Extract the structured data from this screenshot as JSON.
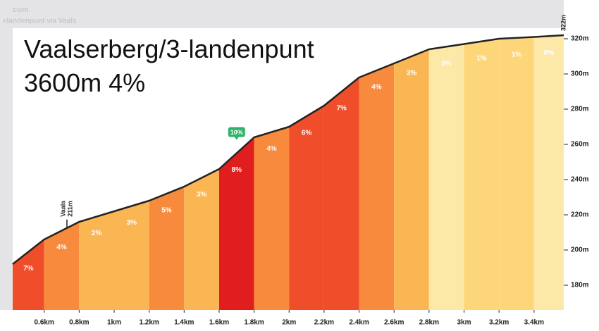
{
  "chart_data": {
    "type": "profile",
    "title": "Vaalserberg/3-landenpunt",
    "subtitle": "3600m 4%",
    "watermark": [
      "com",
      "elandenpunt via Vaals"
    ],
    "x": [
      0.42,
      0.6,
      0.8,
      1.0,
      1.2,
      1.4,
      1.6,
      1.8,
      2.0,
      2.2,
      2.4,
      2.6,
      2.8,
      3.0,
      3.2,
      3.4,
      3.57
    ],
    "values": [
      192,
      206,
      216,
      222,
      228,
      236,
      246,
      264,
      270,
      282,
      298,
      306,
      314,
      317,
      320,
      321,
      322
    ],
    "gradients": [
      7,
      4,
      2,
      3,
      5,
      3,
      8,
      4,
      6,
      7,
      4,
      3,
      0,
      1,
      1,
      0
    ],
    "gradient_labels": [
      "7%",
      "4%",
      "2%",
      "3%",
      "5%",
      "3%",
      "8%",
      "4%",
      "6%",
      "7%",
      "4%",
      "3%",
      "0%",
      "1%",
      "1%",
      "0%"
    ],
    "segment_colors": [
      "#f04e2a",
      "#f78a3c",
      "#fbb654",
      "#fbb654",
      "#f78a3c",
      "#fbb654",
      "#e01e1e",
      "#f78a3c",
      "#f04e2a",
      "#f04e2a",
      "#f78a3c",
      "#fbb654",
      "#fde9a7",
      "#fdd67a",
      "#fdd67a",
      "#fde9a7"
    ],
    "line_color": "#222222",
    "markers": [
      {
        "x": 0.73,
        "label": "Vaals",
        "elevation_label": "211m"
      }
    ],
    "peak": {
      "x": 3.57,
      "label": "322m"
    },
    "max_gradient": {
      "x": 1.7,
      "label": "10%",
      "color": "#2fb36a"
    },
    "xlim": [
      0.42,
      3.57
    ],
    "ylim": [
      166,
      326
    ],
    "xticks": [
      {
        "value": 0.6,
        "label": "0.6km"
      },
      {
        "value": 0.8,
        "label": "0.8km"
      },
      {
        "value": 1.0,
        "label": "1km"
      },
      {
        "value": 1.2,
        "label": "1.2km"
      },
      {
        "value": 1.4,
        "label": "1.4km"
      },
      {
        "value": 1.6,
        "label": "1.6km"
      },
      {
        "value": 1.8,
        "label": "1.8km"
      },
      {
        "value": 2.0,
        "label": "2km"
      },
      {
        "value": 2.2,
        "label": "2.2km"
      },
      {
        "value": 2.4,
        "label": "2.4km"
      },
      {
        "value": 2.6,
        "label": "2.6km"
      },
      {
        "value": 2.8,
        "label": "2.8km"
      },
      {
        "value": 3.0,
        "label": "3km"
      },
      {
        "value": 3.2,
        "label": "3.2km"
      },
      {
        "value": 3.4,
        "label": "3.4km"
      }
    ],
    "yticks": [
      {
        "value": 180,
        "label": "180m"
      },
      {
        "value": 200,
        "label": "200m"
      },
      {
        "value": 220,
        "label": "220m"
      },
      {
        "value": 240,
        "label": "240m"
      },
      {
        "value": 260,
        "label": "260m"
      },
      {
        "value": 280,
        "label": "280m"
      },
      {
        "value": 300,
        "label": "300m"
      },
      {
        "value": 320,
        "label": "320m"
      }
    ]
  }
}
